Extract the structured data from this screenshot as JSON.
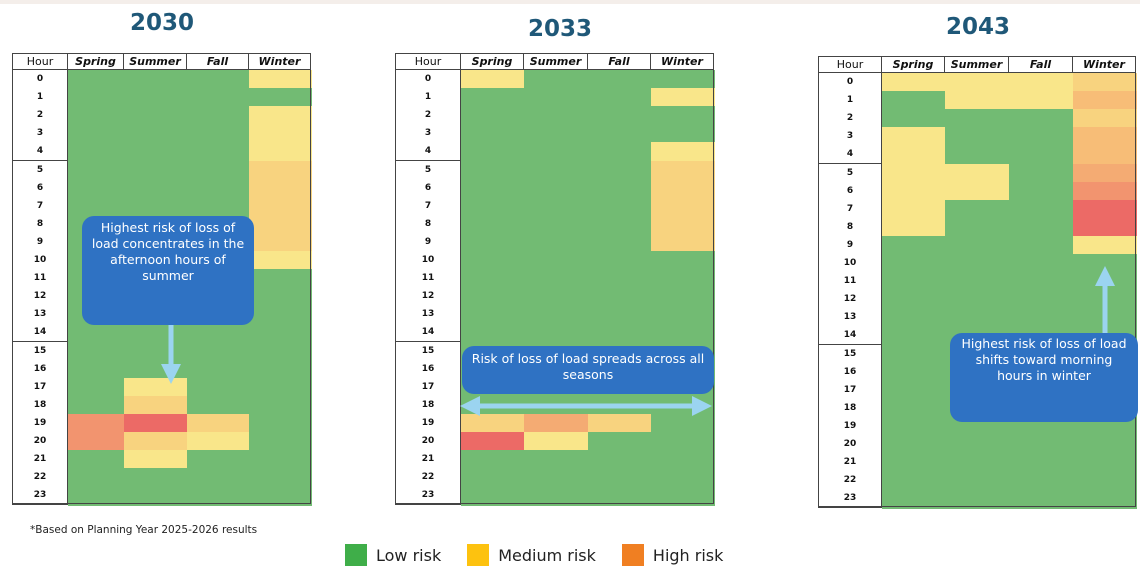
{
  "chart_data": [
    {
      "type": "heatmap",
      "title": "2030",
      "columns": [
        "Hour",
        "Spring",
        "Summer",
        "Fall",
        "Winter"
      ],
      "rows": [
        "0",
        "1",
        "2",
        "3",
        "4",
        "5",
        "6",
        "7",
        "8",
        "9",
        "10",
        "11",
        "12",
        "13",
        "14",
        "15",
        "16",
        "17",
        "18",
        "19",
        "20",
        "21",
        "22",
        "23"
      ],
      "risk_by_hour": {
        "Spring": [
          "L",
          "L",
          "L",
          "L",
          "L",
          "L",
          "L",
          "L",
          "L",
          "L",
          "L",
          "L",
          "L",
          "L",
          "L",
          "L",
          "L",
          "L",
          "L",
          "H3",
          "H3",
          "L",
          "L",
          "L"
        ],
        "Summer": [
          "L",
          "L",
          "L",
          "L",
          "L",
          "L",
          "L",
          "L",
          "L",
          "L",
          "L",
          "L",
          "L",
          "L",
          "L",
          "L",
          "L",
          "M1",
          "M2",
          "H4",
          "M2",
          "M1",
          "L",
          "L"
        ],
        "Fall": [
          "L",
          "L",
          "L",
          "L",
          "L",
          "L",
          "L",
          "L",
          "L",
          "L",
          "L",
          "L",
          "L",
          "L",
          "L",
          "L",
          "L",
          "L",
          "L",
          "M2",
          "M1",
          "L",
          "L",
          "L"
        ],
        "Winter": [
          "M1",
          "L",
          "M1",
          "M1",
          "M1",
          "M2",
          "M2",
          "M2",
          "M2",
          "M2",
          "M1",
          "L",
          "L",
          "L",
          "L",
          "L",
          "L",
          "L",
          "L",
          "L",
          "L",
          "L",
          "L",
          "L"
        ]
      },
      "annotation": "Highest risk of loss of load concentrates in the afternoon hours of summer"
    },
    {
      "type": "heatmap",
      "title": "2033",
      "columns": [
        "Hour",
        "Spring",
        "Summer",
        "Fall",
        "Winter"
      ],
      "rows": [
        "0",
        "1",
        "2",
        "3",
        "4",
        "5",
        "6",
        "7",
        "8",
        "9",
        "10",
        "11",
        "12",
        "13",
        "14",
        "15",
        "16",
        "17",
        "18",
        "19",
        "20",
        "21",
        "22",
        "23"
      ],
      "risk_by_hour": {
        "Spring": [
          "M1",
          "L",
          "L",
          "L",
          "L",
          "L",
          "L",
          "L",
          "L",
          "L",
          "L",
          "L",
          "L",
          "L",
          "L",
          "L",
          "L",
          "L",
          "L",
          "M2",
          "H4",
          "L",
          "L",
          "L"
        ],
        "Summer": [
          "L",
          "L",
          "L",
          "L",
          "L",
          "L",
          "L",
          "L",
          "L",
          "L",
          "L",
          "L",
          "L",
          "L",
          "L",
          "L",
          "L",
          "L",
          "L",
          "H2",
          "M1",
          "L",
          "L",
          "L"
        ],
        "Fall": [
          "L",
          "L",
          "L",
          "L",
          "L",
          "L",
          "L",
          "L",
          "L",
          "L",
          "L",
          "L",
          "L",
          "L",
          "L",
          "L",
          "L",
          "L",
          "L",
          "M2",
          "L",
          "L",
          "L",
          "L"
        ],
        "Winter": [
          "L",
          "M1",
          "L",
          "L",
          "M1",
          "M2",
          "M2",
          "M2",
          "M2",
          "M2",
          "L",
          "L",
          "L",
          "L",
          "L",
          "L",
          "L",
          "L",
          "L",
          "L",
          "L",
          "L",
          "L",
          "L"
        ]
      },
      "annotation": "Risk of loss of load spreads across all seasons"
    },
    {
      "type": "heatmap",
      "title": "2043",
      "columns": [
        "Hour",
        "Spring",
        "Summer",
        "Fall",
        "Winter"
      ],
      "rows": [
        "0",
        "1",
        "2",
        "3",
        "4",
        "5",
        "6",
        "7",
        "8",
        "9",
        "10",
        "11",
        "12",
        "13",
        "14",
        "15",
        "16",
        "17",
        "18",
        "19",
        "20",
        "21",
        "22",
        "23"
      ],
      "risk_by_hour": {
        "Spring": [
          "M1",
          "L",
          "L",
          "M1",
          "M1",
          "M1",
          "M1",
          "M1",
          "M1",
          "L",
          "L",
          "L",
          "L",
          "L",
          "L",
          "L",
          "L",
          "L",
          "L",
          "L",
          "L",
          "L",
          "L",
          "L"
        ],
        "Summer": [
          "M1",
          "M1",
          "L",
          "L",
          "L",
          "M1",
          "M1",
          "L",
          "L",
          "L",
          "L",
          "L",
          "L",
          "L",
          "L",
          "L",
          "L",
          "L",
          "L",
          "L",
          "L",
          "L",
          "L",
          "L"
        ],
        "Fall": [
          "M1",
          "M1",
          "L",
          "L",
          "L",
          "L",
          "L",
          "L",
          "L",
          "L",
          "L",
          "L",
          "L",
          "L",
          "L",
          "L",
          "L",
          "L",
          "L",
          "L",
          "L",
          "L",
          "L",
          "L"
        ],
        "Winter": [
          "M2",
          "H1",
          "M2",
          "H1",
          "H1",
          "H2",
          "H3",
          "H4",
          "H4",
          "M1",
          "L",
          "L",
          "L",
          "L",
          "L",
          "L",
          "L",
          "L",
          "L",
          "L",
          "L",
          "L",
          "L",
          "L"
        ]
      },
      "annotation": "Highest risk of loss of load shifts toward morning hours in winter"
    }
  ],
  "colors": {
    "L": "#72bb73",
    "M1": "#f9e68a",
    "M2": "#f8d37f",
    "H1": "#f7bd77",
    "H2": "#f4ab73",
    "H3": "#f2946f",
    "H4": "#ec6a66"
  },
  "footnote": "*Based on Planning Year 2025-2026 results",
  "legend": [
    {
      "label": "Low risk",
      "color": "#3fae49"
    },
    {
      "label": "Medium risk",
      "color": "#fdc20f"
    },
    {
      "label": "High risk",
      "color": "#f07f22"
    }
  ]
}
